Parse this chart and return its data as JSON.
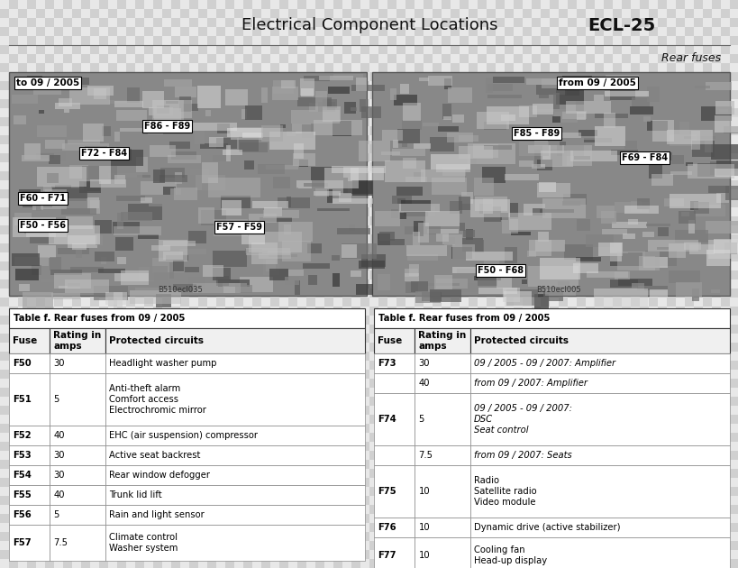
{
  "title_left": "Electrical Component Locations",
  "title_right": "ECL-25",
  "subtitle": "Rear fuses",
  "bg_color": "#ffffff",
  "left_table_title": "Table f. Rear fuses from 09 / 2005",
  "right_table_title": "Table f. Rear fuses from 09 / 2005",
  "col_headers": [
    "Fuse",
    "Rating in\namps",
    "Protected circuits"
  ],
  "left_table_data": [
    [
      "F50",
      "30",
      "Headlight washer pump",
      false
    ],
    [
      "F51",
      "5",
      "Anti-theft alarm\nComfort access\nElectrochromic mirror",
      false
    ],
    [
      "F52",
      "40",
      "EHC (air suspension) compressor",
      false
    ],
    [
      "F53",
      "30",
      "Active seat backrest",
      false
    ],
    [
      "F54",
      "30",
      "Rear window defogger",
      false
    ],
    [
      "F55",
      "40",
      "Trunk lid lift",
      false
    ],
    [
      "F56",
      "5",
      "Rain and light sensor",
      false
    ],
    [
      "F57",
      "7.5",
      "Climate control\nWasher system",
      false
    ]
  ],
  "right_table_data": [
    [
      "F73",
      "30",
      "09 / 2005 - 09 / 2007: Amplifier",
      true
    ],
    [
      "",
      "40",
      "from 09 / 2007: Amplifier",
      true
    ],
    [
      "F74",
      "5",
      "09 / 2005 - 09 / 2007:\nDSC\nSeat control",
      true
    ],
    [
      "",
      "7.5",
      "from 09 / 2007: Seats",
      true
    ],
    [
      "F75",
      "10",
      "Radio\nSatellite radio\nVideo module",
      false
    ],
    [
      "F76",
      "10",
      "Dynamic drive (active stabilizer)",
      false
    ],
    [
      "F77",
      "10",
      "Cooling fan\nHead-up display",
      false
    ]
  ],
  "left_img_caption": "B510ecl035",
  "right_img_caption": "B510ecl005",
  "checker_light": "#e8e8e8",
  "checker_dark": "#d0d0d0",
  "checker_size": 10
}
